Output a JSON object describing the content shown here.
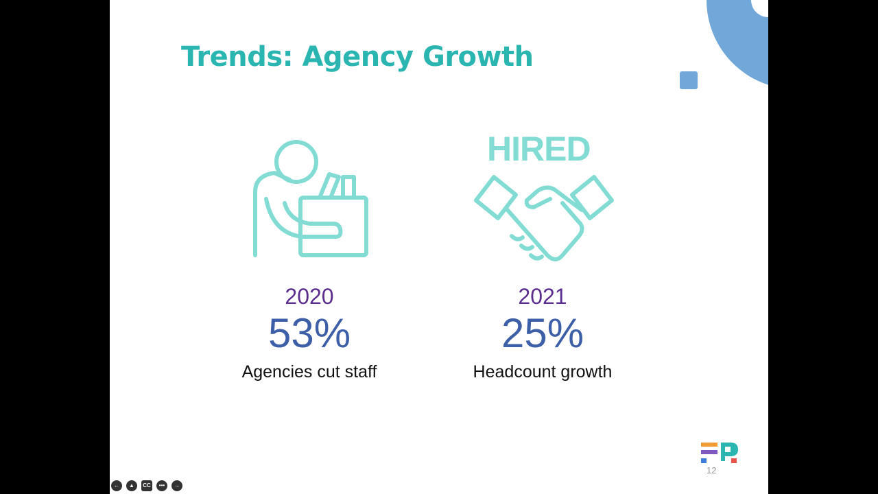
{
  "slide": {
    "title": "Trends: Agency Growth",
    "stats": [
      {
        "year": "2020",
        "value": "53%",
        "caption": "Agencies cut staff"
      },
      {
        "year": "2021",
        "value": "25%",
        "caption": "Headcount growth"
      }
    ],
    "icon_text": "HIRED",
    "page_number": "12"
  },
  "controls": {
    "captions": "CC"
  }
}
